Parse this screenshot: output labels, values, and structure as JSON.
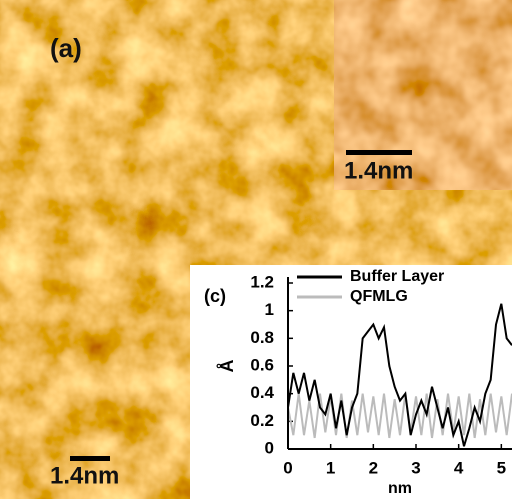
{
  "image": {
    "panel_label": "(a)",
    "scale_bar": "1.4nm",
    "inset_scale_bar": "1.4nm"
  },
  "chart_data": {
    "type": "line",
    "panel_label": "(c)",
    "x_label": "nm",
    "y_label": "Å",
    "x": [
      0,
      0.125,
      0.25,
      0.375,
      0.5,
      0.625,
      0.75,
      0.875,
      1,
      1.125,
      1.25,
      1.375,
      1.5,
      1.625,
      1.75,
      1.875,
      2,
      2.125,
      2.25,
      2.375,
      2.5,
      2.625,
      2.75,
      2.875,
      3,
      3.125,
      3.25,
      3.375,
      3.5,
      3.625,
      3.75,
      3.875,
      4,
      4.125,
      4.25,
      4.375,
      4.5,
      4.625,
      4.75,
      4.875,
      5,
      5.125,
      5.25
    ],
    "series": [
      {
        "name": "Buffer Layer",
        "color": "#000000",
        "values": [
          0.3,
          0.55,
          0.4,
          0.55,
          0.35,
          0.5,
          0.3,
          0.25,
          0.4,
          0.15,
          0.35,
          0.1,
          0.3,
          0.4,
          0.8,
          0.85,
          0.9,
          0.8,
          0.88,
          0.6,
          0.45,
          0.35,
          0.4,
          0.1,
          0.25,
          0.35,
          0.25,
          0.45,
          0.3,
          0.15,
          0.3,
          0.1,
          0.2,
          0.02,
          0.15,
          0.3,
          0.2,
          0.4,
          0.5,
          0.9,
          1.05,
          0.8,
          0.75
        ]
      },
      {
        "name": "QFMLG",
        "color": "#bbbbbb",
        "values": [
          0.3,
          0.1,
          0.4,
          0.1,
          0.35,
          0.08,
          0.4,
          0.12,
          0.38,
          0.1,
          0.4,
          0.08,
          0.35,
          0.1,
          0.4,
          0.12,
          0.38,
          0.1,
          0.4,
          0.08,
          0.36,
          0.1,
          0.4,
          0.12,
          0.38,
          0.1,
          0.4,
          0.08,
          0.36,
          0.1,
          0.4,
          0.12,
          0.38,
          0.1,
          0.4,
          0.08,
          0.36,
          0.1,
          0.4,
          0.12,
          0.38,
          0.1,
          0.4
        ]
      }
    ],
    "xlim": [
      0,
      5.25
    ],
    "ylim": [
      0,
      1.2
    ],
    "xticks": [
      0,
      1,
      2,
      3,
      4,
      5
    ],
    "yticks": [
      0,
      0.2,
      0.4,
      0.6,
      0.8,
      1,
      1.2
    ]
  }
}
